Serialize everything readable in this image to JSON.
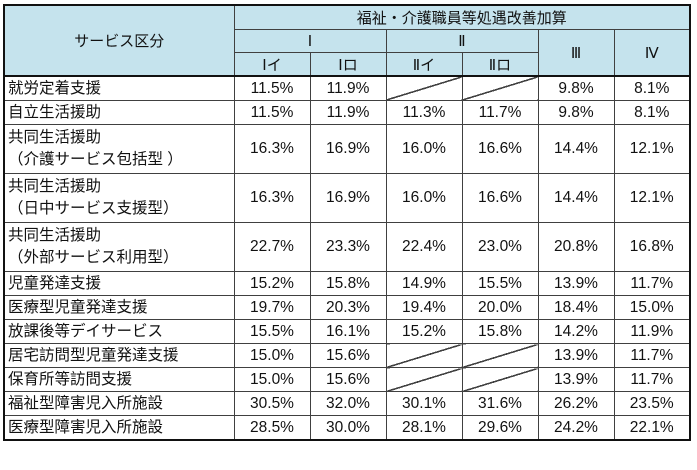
{
  "table": {
    "corner_header": "サービス区分",
    "group_header": "福祉・介護職員等処遇改善加算",
    "level1": [
      "Ⅰ",
      "Ⅱ",
      "Ⅲ",
      "Ⅳ"
    ],
    "level2": [
      "Ⅰイ",
      "Ⅰロ",
      "Ⅱイ",
      "Ⅱロ"
    ],
    "na_marker": "diagonal-line",
    "rows": [
      {
        "label": "就労定着支援",
        "values": [
          "11.5%",
          "11.9%",
          null,
          null,
          "9.8%",
          "8.1%"
        ]
      },
      {
        "label": "自立生活援助",
        "values": [
          "11.5%",
          "11.9%",
          "11.3%",
          "11.7%",
          "9.8%",
          "8.1%"
        ]
      },
      {
        "label": "共同生活援助\n（介護サービス包括型 ）",
        "values": [
          "16.3%",
          "16.9%",
          "16.0%",
          "16.6%",
          "14.4%",
          "12.1%"
        ]
      },
      {
        "label": "共同生活援助\n（日中サービス支援型）",
        "values": [
          "16.3%",
          "16.9%",
          "16.0%",
          "16.6%",
          "14.4%",
          "12.1%"
        ]
      },
      {
        "label": "共同生活援助\n（外部サービス利用型）",
        "values": [
          "22.7%",
          "23.3%",
          "22.4%",
          "23.0%",
          "20.8%",
          "16.8%"
        ]
      },
      {
        "label": "児童発達支援",
        "values": [
          "15.2%",
          "15.8%",
          "14.9%",
          "15.5%",
          "13.9%",
          "11.7%"
        ]
      },
      {
        "label": "医療型児童発達支援",
        "values": [
          "19.7%",
          "20.3%",
          "19.4%",
          "20.0%",
          "18.4%",
          "15.0%"
        ]
      },
      {
        "label": "放課後等デイサービス",
        "values": [
          "15.5%",
          "16.1%",
          "15.2%",
          "15.8%",
          "14.2%",
          "11.9%"
        ]
      },
      {
        "label": "居宅訪問型児童発達支援",
        "values": [
          "15.0%",
          "15.6%",
          null,
          null,
          "13.9%",
          "11.7%"
        ]
      },
      {
        "label": "保育所等訪問支援",
        "values": [
          "15.0%",
          "15.6%",
          null,
          null,
          "13.9%",
          "11.7%"
        ]
      },
      {
        "label": "福祉型障害児入所施設",
        "values": [
          "30.5%",
          "32.0%",
          "30.1%",
          "31.6%",
          "26.2%",
          "23.5%"
        ]
      },
      {
        "label": "医療型障害児入所施設",
        "values": [
          "28.5%",
          "30.0%",
          "28.1%",
          "29.6%",
          "24.2%",
          "22.1%"
        ]
      }
    ]
  },
  "colors": {
    "header_bg": "#C5E3ED",
    "inner_border": "#404040",
    "outer_border": "#111111",
    "text": "#111111",
    "cell_bg": "#FFFFFF"
  }
}
